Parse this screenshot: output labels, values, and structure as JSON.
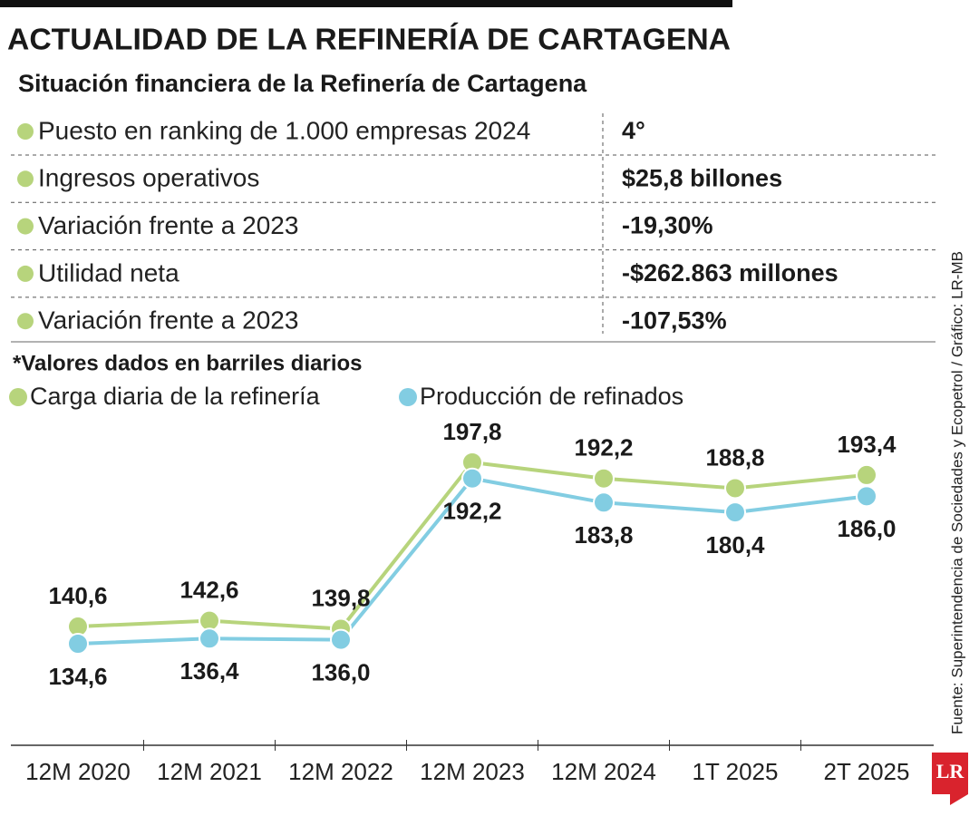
{
  "header": {
    "title": "ACTUALIDAD DE LA REFINERÍA DE CARTAGENA",
    "subtitle": "Situación financiera de la Refinería de Cartagena"
  },
  "table": {
    "rows": [
      [
        "Puesto en ranking de 1.000 empresas 2024",
        "4°"
      ],
      [
        "Ingresos operativos",
        "$25,8 billones"
      ],
      [
        "Variación frente a 2023",
        "-19,30%"
      ],
      [
        "Utilidad neta",
        "-$262.863 millones"
      ],
      [
        "Variación frente a 2023",
        "-107,53%"
      ]
    ]
  },
  "chart_data": {
    "type": "line",
    "note": "*Valores dados en barriles diarios",
    "categories": [
      "12M 2020",
      "12M 2021",
      "12M 2022",
      "12M 2023",
      "12M 2024",
      "1T 2025",
      "2T 2025"
    ],
    "series": [
      {
        "name": "Carga diaria de la refinería",
        "color": "#b7d47c",
        "values": [
          140.6,
          142.6,
          139.8,
          197.8,
          192.2,
          188.8,
          193.4
        ],
        "value_labels": [
          "140,6",
          "142,6",
          "139,8",
          "197,8",
          "192,2",
          "188,8",
          "193,4"
        ]
      },
      {
        "name": "Producción de refinados",
        "color": "#82cde2",
        "values": [
          134.6,
          136.4,
          136.0,
          192.2,
          183.8,
          180.4,
          186.0
        ],
        "value_labels": [
          "134,6",
          "136,4",
          "136,0",
          "192,2",
          "183,8",
          "180,4",
          "186,0"
        ]
      }
    ]
  },
  "source": "Fuente: Superintendencia de Sociedades y Ecopetrol / Gráfico: LR-MB",
  "logo": "LR"
}
